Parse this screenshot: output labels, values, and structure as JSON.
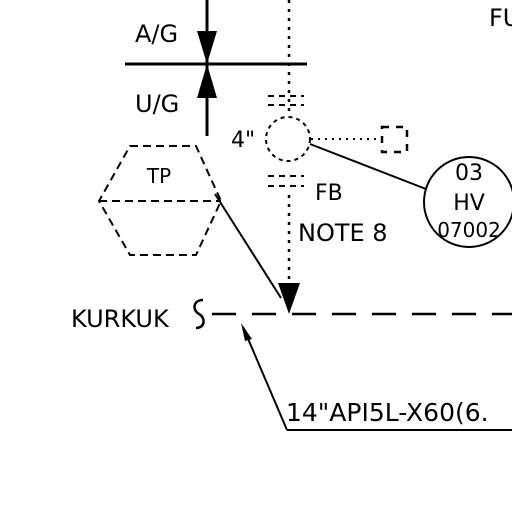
{
  "labels": {
    "above_ground": "A/G",
    "under_ground": "U/G",
    "size": "4\"",
    "corner": "FU",
    "tie_point": "TP",
    "flange_blind": "FB",
    "note": "NOTE 8",
    "line_origin": "KURKUK",
    "pipe_spec": "14\"API5L-X60(6."
  },
  "valve_tag": {
    "line1": "03",
    "line2": "HV",
    "line3": "07002"
  }
}
